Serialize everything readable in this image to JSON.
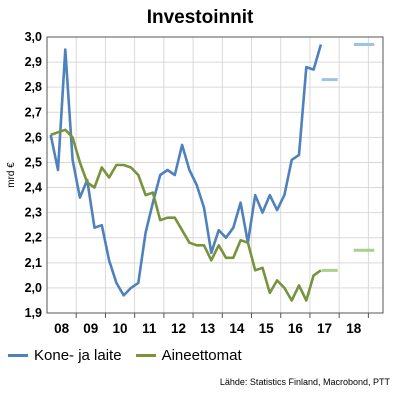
{
  "chart_data": {
    "type": "line",
    "title": "Investoinnit",
    "ylabel": "mrd €",
    "xlabel": "",
    "ylim": [
      1.9,
      3.0
    ],
    "xlim": [
      2007.5,
      2019.0
    ],
    "yticks": [
      1.9,
      2.0,
      2.1,
      2.2,
      2.3,
      2.4,
      2.5,
      2.6,
      2.7,
      2.8,
      2.9,
      3.0
    ],
    "ytick_labels": [
      "1,9",
      "2,0",
      "2,1",
      "2,2",
      "2,3",
      "2,4",
      "2,5",
      "2,6",
      "2,7",
      "2,8",
      "2,9",
      "3,0"
    ],
    "xticks": [
      {
        "x": 2008.0,
        "label": "08"
      },
      {
        "x": 2009.0,
        "label": "09"
      },
      {
        "x": 2010.0,
        "label": "10"
      },
      {
        "x": 2011.0,
        "label": "11"
      },
      {
        "x": 2012.0,
        "label": "12"
      },
      {
        "x": 2013.0,
        "label": "13"
      },
      {
        "x": 2014.0,
        "label": "14"
      },
      {
        "x": 2015.0,
        "label": "15"
      },
      {
        "x": 2016.0,
        "label": "16"
      },
      {
        "x": 2017.0,
        "label": "17"
      },
      {
        "x": 2018.0,
        "label": "18"
      }
    ],
    "grid": true,
    "legend_position": "bottom-left",
    "series": [
      {
        "name": "Kone- ja laite",
        "color": "#4f81bd",
        "x": [
          2007.625,
          2007.875,
          2008.125,
          2008.375,
          2008.625,
          2008.875,
          2009.125,
          2009.375,
          2009.625,
          2009.875,
          2010.125,
          2010.375,
          2010.625,
          2010.875,
          2011.125,
          2011.375,
          2011.625,
          2011.875,
          2012.125,
          2012.375,
          2012.625,
          2012.875,
          2013.125,
          2013.375,
          2013.625,
          2013.875,
          2014.125,
          2014.375,
          2014.625,
          2014.875,
          2015.125,
          2015.375,
          2015.625,
          2015.875,
          2016.125,
          2016.375,
          2016.625,
          2016.875
        ],
        "y": [
          2.61,
          2.47,
          2.95,
          2.51,
          2.36,
          2.43,
          2.24,
          2.25,
          2.11,
          2.02,
          1.97,
          2.0,
          2.02,
          2.22,
          2.34,
          2.45,
          2.47,
          2.45,
          2.57,
          2.47,
          2.41,
          2.32,
          2.14,
          2.23,
          2.2,
          2.24,
          2.34,
          2.18,
          2.37,
          2.3,
          2.37,
          2.31,
          2.37,
          2.51,
          2.53,
          2.88,
          2.87,
          2.97
        ]
      },
      {
        "name": "Aineettomat",
        "color": "#77933c",
        "x": [
          2007.625,
          2007.875,
          2008.125,
          2008.375,
          2008.625,
          2008.875,
          2009.125,
          2009.375,
          2009.625,
          2009.875,
          2010.125,
          2010.375,
          2010.625,
          2010.875,
          2011.125,
          2011.375,
          2011.625,
          2011.875,
          2012.125,
          2012.375,
          2012.625,
          2012.875,
          2013.125,
          2013.375,
          2013.625,
          2013.875,
          2014.125,
          2014.375,
          2014.625,
          2014.875,
          2015.125,
          2015.375,
          2015.625,
          2015.875,
          2016.125,
          2016.375,
          2016.625,
          2016.875
        ],
        "y": [
          2.61,
          2.62,
          2.63,
          2.6,
          2.5,
          2.42,
          2.4,
          2.48,
          2.44,
          2.49,
          2.49,
          2.48,
          2.45,
          2.37,
          2.38,
          2.27,
          2.28,
          2.28,
          2.23,
          2.18,
          2.17,
          2.17,
          2.11,
          2.17,
          2.12,
          2.12,
          2.19,
          2.18,
          2.07,
          2.08,
          1.98,
          2.03,
          2.0,
          1.95,
          2.01,
          1.95,
          2.05,
          2.07
        ]
      }
    ],
    "forecasts": [
      {
        "name": "Kone- ja laite 2017",
        "color": "#9dc3e6",
        "x": [
          2016.9,
          2017.45
        ],
        "value": 2.83
      },
      {
        "name": "Kone- ja laite 2018",
        "color": "#9dc3e6",
        "x": [
          2018.0,
          2018.7
        ],
        "value": 2.97
      },
      {
        "name": "Aineettomat 2017",
        "color": "#a9d18e",
        "x": [
          2016.9,
          2017.45
        ],
        "value": 2.07
      },
      {
        "name": "Aineettomat 2018",
        "color": "#a9d18e",
        "x": [
          2018.0,
          2018.7
        ],
        "value": 2.15
      }
    ]
  },
  "legend": {
    "items": [
      {
        "label": "Kone- ja laite",
        "color": "#4f81bd"
      },
      {
        "label": "Aineettomat",
        "color": "#77933c"
      }
    ]
  },
  "source_note": "Lähde: Statistics Finland, Macrobond, PTT"
}
